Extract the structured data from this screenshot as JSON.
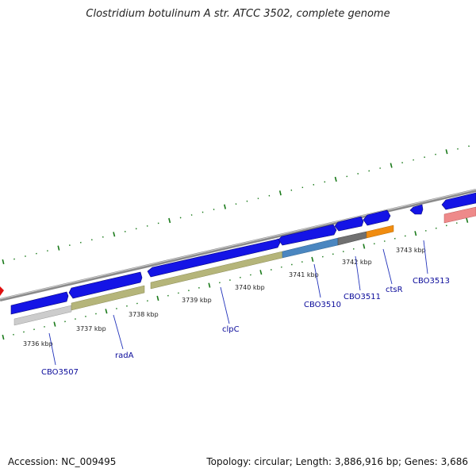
{
  "title": "Clostridium botulinum A str. ATCC 3502, complete genome",
  "footer": {
    "accession": "Accession: NC_009495",
    "stats": "Topology: circular; Length: 3,886,916 bp; Genes: 3,686"
  },
  "colors": {
    "backbone": "#888888",
    "cds": "#1010e8",
    "tick": "#1a7a1a",
    "gene_label": "#0a0a9a",
    "leader": "#2233bb"
  },
  "kbp_labels": [
    "3736 kbp",
    "3737 kbp",
    "3738 kbp",
    "3739 kbp",
    "3740 kbp",
    "3741 kbp",
    "3742 kbp",
    "3743 kbp"
  ],
  "gene_labels": [
    "CBO3507",
    "radA",
    "clpC",
    "CBO3510",
    "CBO3511",
    "ctsR",
    "CBO3513"
  ]
}
